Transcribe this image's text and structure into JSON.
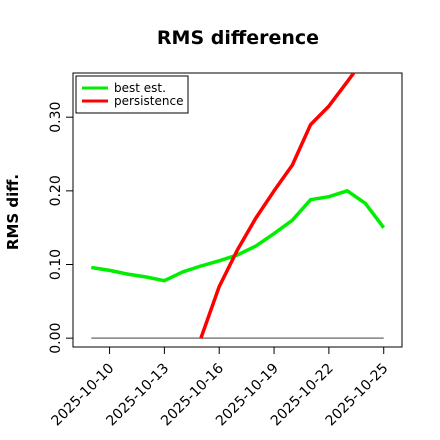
{
  "chart_data": {
    "type": "line",
    "title": "RMS difference",
    "xlabel": "",
    "ylabel": "RMS diff.",
    "x": [
      "2025-10-09",
      "2025-10-10",
      "2025-10-11",
      "2025-10-12",
      "2025-10-13",
      "2025-10-14",
      "2025-10-15",
      "2025-10-16",
      "2025-10-17",
      "2025-10-18",
      "2025-10-19",
      "2025-10-20",
      "2025-10-21",
      "2025-10-22",
      "2025-10-23",
      "2025-10-24",
      "2025-10-25"
    ],
    "x_ticks": [
      "2025-10-10",
      "2025-10-13",
      "2025-10-16",
      "2025-10-19",
      "2025-10-22",
      "2025-10-25"
    ],
    "y_ticks": [
      0.0,
      0.1,
      0.2,
      0.3
    ],
    "y_tick_labels": [
      "0.00",
      "0.10",
      "0.20",
      "0.30"
    ],
    "xlim": [
      "2025-10-08",
      "2025-10-26"
    ],
    "ylim": [
      -0.012,
      0.36
    ],
    "legend_position": "top-left",
    "reference_line": {
      "y": 0.0,
      "color": "#808080"
    },
    "series": [
      {
        "name": "best est.",
        "color": "#00ee00",
        "x": [
          "2025-10-09",
          "2025-10-10",
          "2025-10-11",
          "2025-10-12",
          "2025-10-13",
          "2025-10-14",
          "2025-10-15",
          "2025-10-16",
          "2025-10-17",
          "2025-10-18",
          "2025-10-19",
          "2025-10-20",
          "2025-10-21",
          "2025-10-22",
          "2025-10-23",
          "2025-10-24",
          "2025-10-25"
        ],
        "values": [
          0.096,
          0.092,
          0.087,
          0.083,
          0.078,
          0.09,
          0.098,
          0.105,
          0.113,
          0.125,
          0.142,
          0.16,
          0.188,
          0.192,
          0.2,
          0.183,
          0.15
        ]
      },
      {
        "name": "persistence",
        "color": "#ff0000",
        "x": [
          "2025-10-15",
          "2025-10-16",
          "2025-10-17",
          "2025-10-18",
          "2025-10-19",
          "2025-10-20",
          "2025-10-21",
          "2025-10-22",
          "2025-10-23",
          "2025-10-23.6"
        ],
        "values": [
          0.0,
          0.07,
          0.12,
          0.163,
          0.2,
          0.235,
          0.29,
          0.315,
          0.348,
          0.368
        ]
      }
    ]
  }
}
